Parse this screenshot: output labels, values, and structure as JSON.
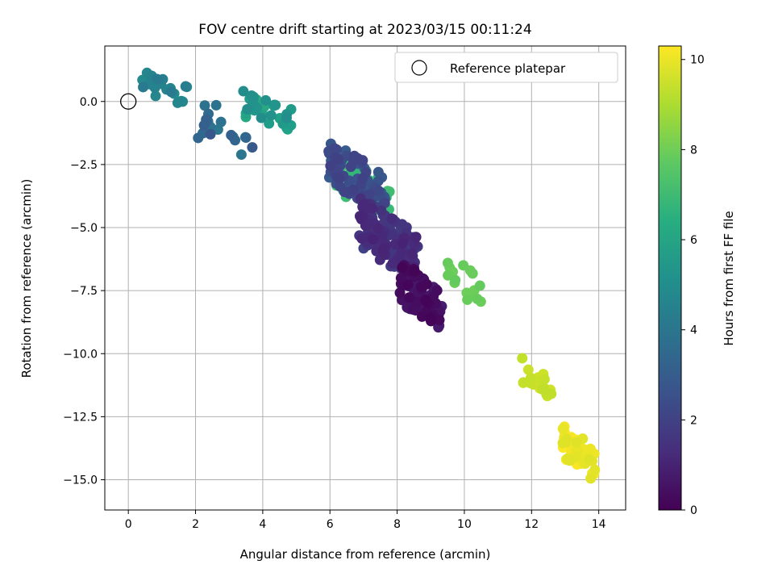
{
  "chart_data": {
    "type": "scatter",
    "title": "FOV centre drift starting at 2023/03/15 00:11:24",
    "xlabel": "Angular distance from reference (arcmin)",
    "ylabel": "Rotation from reference (arcmin)",
    "xlim": [
      -0.7,
      14.8
    ],
    "ylim": [
      -16.2,
      2.2
    ],
    "xticks": [
      0,
      2,
      4,
      6,
      8,
      10,
      12,
      14
    ],
    "yticks": [
      0.0,
      -2.5,
      -5.0,
      -7.5,
      -10.0,
      -12.5,
      -15.0
    ],
    "xtick_labels": [
      "0",
      "2",
      "4",
      "6",
      "8",
      "10",
      "12",
      "14"
    ],
    "ytick_labels": [
      "0.0",
      "−2.5",
      "−5.0",
      "−7.5",
      "−10.0",
      "−12.5",
      "−15.0"
    ],
    "grid": true,
    "legend": {
      "position": "top-right",
      "entries": [
        "Reference platepar"
      ]
    },
    "reference_point": {
      "x": 0,
      "y": 0,
      "label": "Reference platepar"
    },
    "colorbar": {
      "label": "Hours from first FF file",
      "range": [
        0,
        10.3
      ],
      "ticks": [
        0,
        2,
        4,
        6,
        8,
        10
      ],
      "tick_labels": [
        "0",
        "2",
        "4",
        "6",
        "8",
        "10"
      ],
      "colormap": "viridis"
    },
    "clusters": [
      {
        "t": [
          4.2,
          4.9
        ],
        "x": [
          0,
          2.2
        ],
        "y": [
          -0.5,
          1.4
        ],
        "n": 22
      },
      {
        "t": [
          2.8,
          4.2
        ],
        "x": [
          1.4,
          4.4
        ],
        "y": [
          -2.7,
          0.5
        ],
        "n": 20
      },
      {
        "t": [
          5.0,
          6.4
        ],
        "x": [
          3.0,
          5.2
        ],
        "y": [
          -1.4,
          0.6
        ],
        "n": 32
      },
      {
        "t": [
          2.0,
          3.0
        ],
        "x": [
          5.6,
          8.0
        ],
        "y": [
          -4.7,
          -1.3
        ],
        "n": 90
      },
      {
        "t": [
          1.0,
          2.0
        ],
        "x": [
          6.5,
          9.0
        ],
        "y": [
          -7.5,
          -3.5
        ],
        "n": 140
      },
      {
        "t": [
          0.1,
          1.0
        ],
        "x": [
          7.8,
          9.6
        ],
        "y": [
          -9.4,
          -6.0
        ],
        "n": 90
      },
      {
        "t": [
          6.6,
          7.3
        ],
        "x": [
          5.7,
          8.2
        ],
        "y": [
          -5.2,
          -1.7
        ],
        "n": 26
      },
      {
        "t": [
          7.8,
          8.0
        ],
        "x": [
          9.1,
          10.8
        ],
        "y": [
          -8.5,
          -5.8
        ],
        "n": 16
      },
      {
        "t": [
          9.3,
          9.6
        ],
        "x": [
          11.5,
          12.8
        ],
        "y": [
          -12.1,
          -9.9
        ],
        "n": 22
      },
      {
        "t": [
          9.8,
          10.3
        ],
        "x": [
          12.7,
          14.1
        ],
        "y": [
          -15.3,
          -12.5
        ],
        "n": 46
      }
    ]
  }
}
